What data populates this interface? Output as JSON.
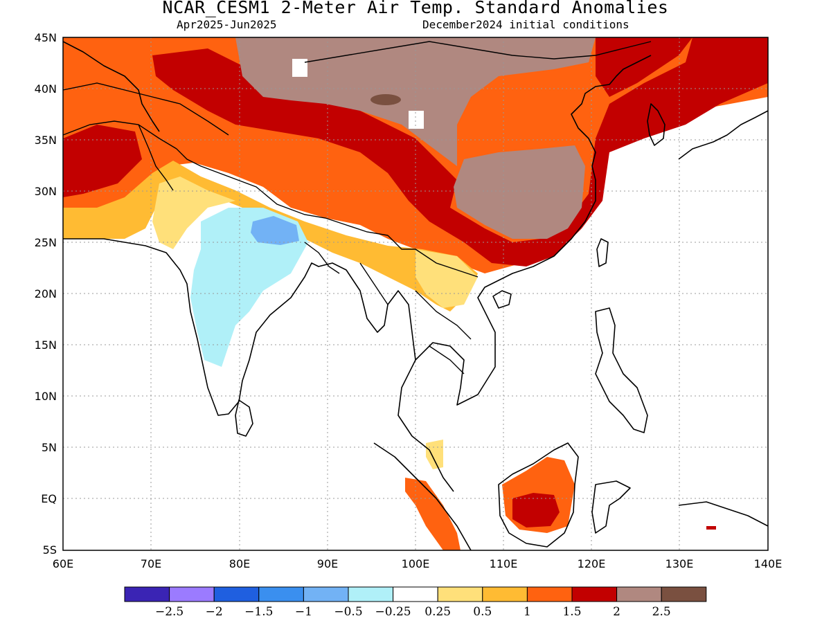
{
  "title": "NCAR_CESM1 2-Meter Air Temp. Standard Anomalies",
  "subtitle_left": "Apr2025-Jun2025",
  "subtitle_right": "December2024 initial conditions",
  "lat_ticks": [
    "45N",
    "40N",
    "35N",
    "30N",
    "25N",
    "20N",
    "15N",
    "10N",
    "5N",
    "EQ",
    "5S"
  ],
  "lon_ticks": [
    "60E",
    "70E",
    "80E",
    "90E",
    "100E",
    "110E",
    "120E",
    "130E",
    "140E"
  ],
  "colorbar": {
    "colors": [
      "#3a24b4",
      "#9b7bff",
      "#1f5fe0",
      "#3a8fef",
      "#72b2f5",
      "#b0f0f8",
      "#ffffff",
      "#ffe07a",
      "#ffbb33",
      "#ff6210",
      "#c20000",
      "#b08880",
      "#7a5040"
    ],
    "labels": [
      "-2.5",
      "-2",
      "-1.5",
      "-1",
      "-0.5",
      "-0.25",
      "0.25",
      "0.5",
      "1",
      "1.5",
      "2",
      "2.5"
    ]
  },
  "map_extent": {
    "lon": [
      60,
      140
    ],
    "lat": [
      -5,
      45
    ]
  }
}
